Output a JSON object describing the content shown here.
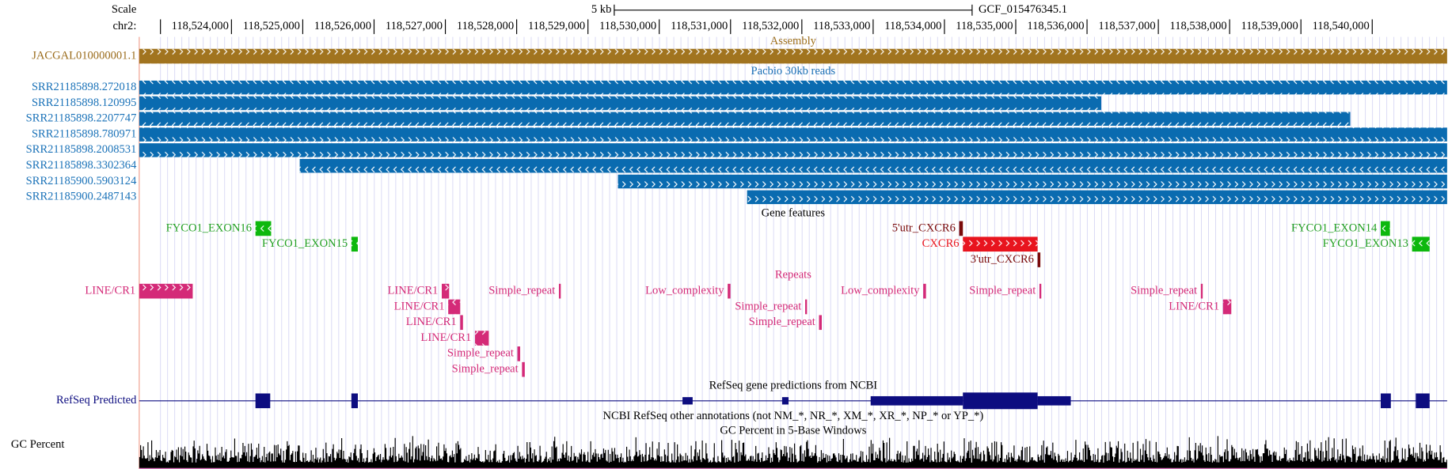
{
  "header": {
    "scale_label": "Scale",
    "scale_size": "5 kb",
    "assembly_name": "GCF_015476345.1",
    "chrom_label": "chr2:",
    "ruler_ticks": [
      "118,524,000",
      "118,525,000",
      "118,526,000",
      "118,527,000",
      "118,528,000",
      "118,529,000",
      "118,530,000",
      "118,531,000",
      "118,532,000",
      "118,533,000",
      "118,534,000",
      "118,535,000",
      "118,536,000",
      "118,537,000",
      "118,538,000",
      "118,539,000",
      "118,540,000"
    ]
  },
  "tracks": {
    "assembly": {
      "title": "Assembly",
      "items": [
        "JACGAL010000001.1"
      ]
    },
    "pacbio": {
      "title": "Pacbio 30kb reads",
      "items": [
        "SRR21185898.272018",
        "SRR21185898.120995",
        "SRR21185898.2207747",
        "SRR21185898.780971",
        "SRR21185898.2008531",
        "SRR21185898.3302364",
        "SRR21185900.5903124",
        "SRR21185900.2487143"
      ]
    },
    "gene_features": {
      "title": "Gene features",
      "items": [
        "FYCO1_EXON16",
        "FYCO1_EXON15",
        "5'utr_CXCR6",
        "CXCR6",
        "3'utr_CXCR6",
        "FYCO1_EXON14",
        "FYCO1_EXON13"
      ]
    },
    "repeats": {
      "title": "Repeats",
      "items": [
        "LINE/CR1",
        "LINE/CR1",
        "Simple_repeat",
        "Low_complexity",
        "Low_complexity",
        "Simple_repeat",
        "Simple_repeat",
        "LINE/CR1",
        "Simple_repeat",
        "LINE/CR1",
        "LINE/CR1",
        "Simple_repeat",
        "LINE/CR1",
        "Simple_repeat",
        "Simple_repeat"
      ]
    },
    "refseq": {
      "title": "RefSeq gene predictions from NCBI",
      "label": "RefSeq Predicted"
    },
    "other": {
      "title": "NCBI RefSeq other annotations (not NM_*, NR_*, XM_*, XR_*, NP_* or YP_*)"
    },
    "gc": {
      "title": "GC Percent in 5-Base Windows",
      "label": "GC Percent"
    }
  }
}
